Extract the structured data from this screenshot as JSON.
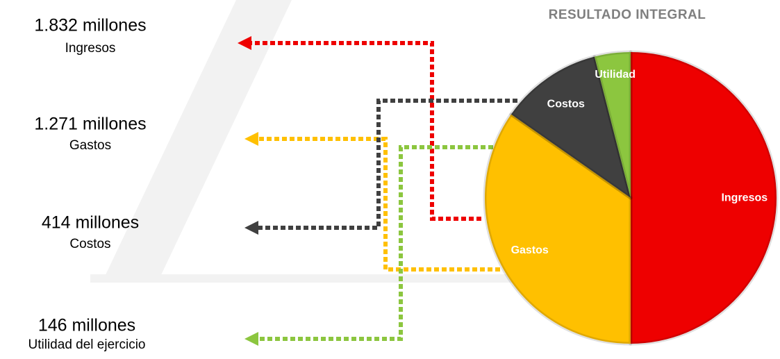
{
  "chart_data": {
    "type": "pie",
    "title": "RESULTADO INTEGRAL",
    "categories": [
      "Ingresos",
      "Gastos",
      "Costos",
      "Utilidad"
    ],
    "values": [
      1832,
      1271,
      414,
      146
    ],
    "value_labels": [
      "1.832 millones",
      "1.271 millones",
      "414 millones",
      "146 millones"
    ],
    "captions": [
      "Ingresos",
      "Gastos",
      "Costos",
      "Utilidad del ejercicio"
    ],
    "colors": [
      "#ee0000",
      "#ffc000",
      "#404040",
      "#8cc63f"
    ]
  }
}
